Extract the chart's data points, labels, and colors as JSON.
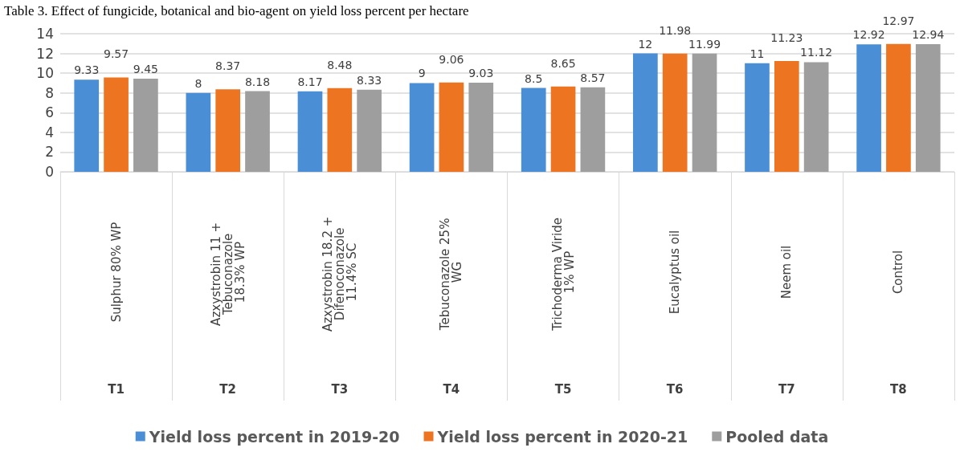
{
  "chart_data": {
    "type": "bar",
    "title": "Table 3. Effect of fungicide, botanical and bio-agent on yield loss percent per hectare",
    "categories": [
      "Sulphur 80% WP",
      "Azxystrobin 11 + Tebuconazole 18.3% WP",
      "Azxystrobin 18.2 + Difenoconazole 11.4% SC",
      "Tebuconazole 25% WG",
      "Trichoderma Viride 1% WP",
      "Eucalyptus oil",
      "Neem oil",
      "Control"
    ],
    "series": [
      {
        "name": "Yield loss percent in 2019-20",
        "color": "#4a8fd6",
        "values": [
          9.33,
          8,
          8.17,
          9,
          8.5,
          12,
          11,
          12.92
        ]
      },
      {
        "name": "Yield loss percent in 2020-21",
        "color": "#ed7421",
        "values": [
          9.57,
          8.37,
          8.48,
          9.06,
          8.65,
          11.98,
          11.23,
          12.97
        ]
      },
      {
        "name": "Pooled data",
        "color": "#9e9e9e",
        "values": [
          9.45,
          8.18,
          8.33,
          9.03,
          8.57,
          11.99,
          11.12,
          12.94
        ]
      }
    ],
    "annotations": [
      "T1",
      "T2",
      "T3",
      "T4",
      "T5",
      "T6",
      "T7",
      "T8"
    ],
    "ylim": [
      0,
      14
    ],
    "yticks": [
      0,
      2,
      4,
      6,
      8,
      10,
      12,
      14
    ],
    "grid": "y",
    "legend": "bottom",
    "data_labels": true
  }
}
